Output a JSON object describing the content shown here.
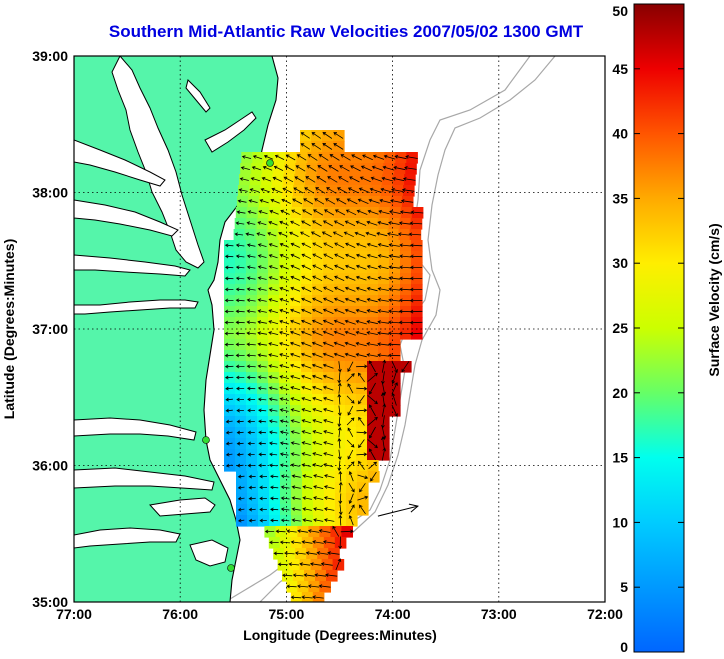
{
  "title": "Southern Mid-Atlantic Raw Velocities 2007/05/02 1300 GMT",
  "map": {
    "xlabel": "Longitude (Degrees:Minutes)",
    "ylabel": "Latitude (Degrees:Minutes)",
    "x_ticks": [
      "77:00",
      "76:00",
      "75:00",
      "74:00",
      "73:00",
      "72:00"
    ],
    "y_ticks": [
      "39:00",
      "38:00",
      "37:00",
      "36:00",
      "35:00"
    ],
    "lon_range": [
      -77.0,
      -72.0
    ],
    "lat_range": [
      35.0,
      39.0
    ],
    "grid": true,
    "colors": {
      "land": "#55f5aa",
      "water": "#ffffff",
      "coast": "#000000",
      "bathymetry": "#a8a8a8",
      "station": "#33cc33",
      "title": "#0000e0"
    }
  },
  "colorbar": {
    "label": "Surface Velocity (cm/s)",
    "ticks": [
      "0",
      "5",
      "10",
      "15",
      "20",
      "25",
      "30",
      "35",
      "40",
      "45",
      "50"
    ],
    "range": [
      0,
      50
    ],
    "colormap": "jet"
  },
  "reference_vector": {
    "lon": -73.95,
    "lat": 35.6,
    "speed": 50
  }
}
